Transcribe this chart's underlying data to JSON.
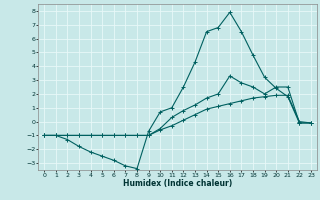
{
  "xlabel": "Humidex (Indice chaleur)",
  "ylabel": "",
  "xlim": [
    -0.5,
    23.5
  ],
  "ylim": [
    -3.5,
    8.5
  ],
  "xticks": [
    0,
    1,
    2,
    3,
    4,
    5,
    6,
    7,
    8,
    9,
    10,
    11,
    12,
    13,
    14,
    15,
    16,
    17,
    18,
    19,
    20,
    21,
    22,
    23
  ],
  "yticks": [
    -3,
    -2,
    -1,
    0,
    1,
    2,
    3,
    4,
    5,
    6,
    7,
    8
  ],
  "background_color": "#c8e8e8",
  "grid_color": "#e8f8f8",
  "line_color": "#006060",
  "line1_x": [
    0,
    1,
    2,
    3,
    4,
    5,
    6,
    7,
    8,
    9,
    10,
    11,
    12,
    13,
    14,
    15,
    16,
    17,
    18,
    19,
    20,
    21,
    22,
    23
  ],
  "line1_y": [
    -1,
    -1,
    -1.3,
    -1.8,
    -2.2,
    -2.5,
    -2.8,
    -3.2,
    -3.4,
    -0.7,
    0.7,
    1.0,
    2.5,
    4.3,
    6.5,
    6.8,
    7.9,
    6.5,
    4.8,
    3.2,
    2.4,
    1.8,
    -0.1,
    -0.1
  ],
  "line2_x": [
    0,
    1,
    2,
    3,
    4,
    5,
    6,
    7,
    8,
    9,
    10,
    11,
    12,
    13,
    14,
    15,
    16,
    17,
    18,
    19,
    20,
    21,
    22,
    23
  ],
  "line2_y": [
    -1,
    -1,
    -1,
    -1,
    -1,
    -1,
    -1,
    -1,
    -1,
    -1,
    -0.5,
    0.3,
    0.8,
    1.2,
    1.7,
    2.0,
    3.3,
    2.8,
    2.5,
    2.0,
    2.5,
    2.5,
    -0.1,
    -0.1
  ],
  "line3_x": [
    0,
    1,
    2,
    3,
    4,
    5,
    6,
    7,
    8,
    9,
    10,
    11,
    12,
    13,
    14,
    15,
    16,
    17,
    18,
    19,
    20,
    21,
    22,
    23
  ],
  "line3_y": [
    -1,
    -1,
    -1,
    -1,
    -1,
    -1,
    -1,
    -1,
    -1,
    -1,
    -0.6,
    -0.3,
    0.1,
    0.5,
    0.9,
    1.1,
    1.3,
    1.5,
    1.7,
    1.8,
    1.9,
    1.9,
    0.0,
    -0.1
  ]
}
